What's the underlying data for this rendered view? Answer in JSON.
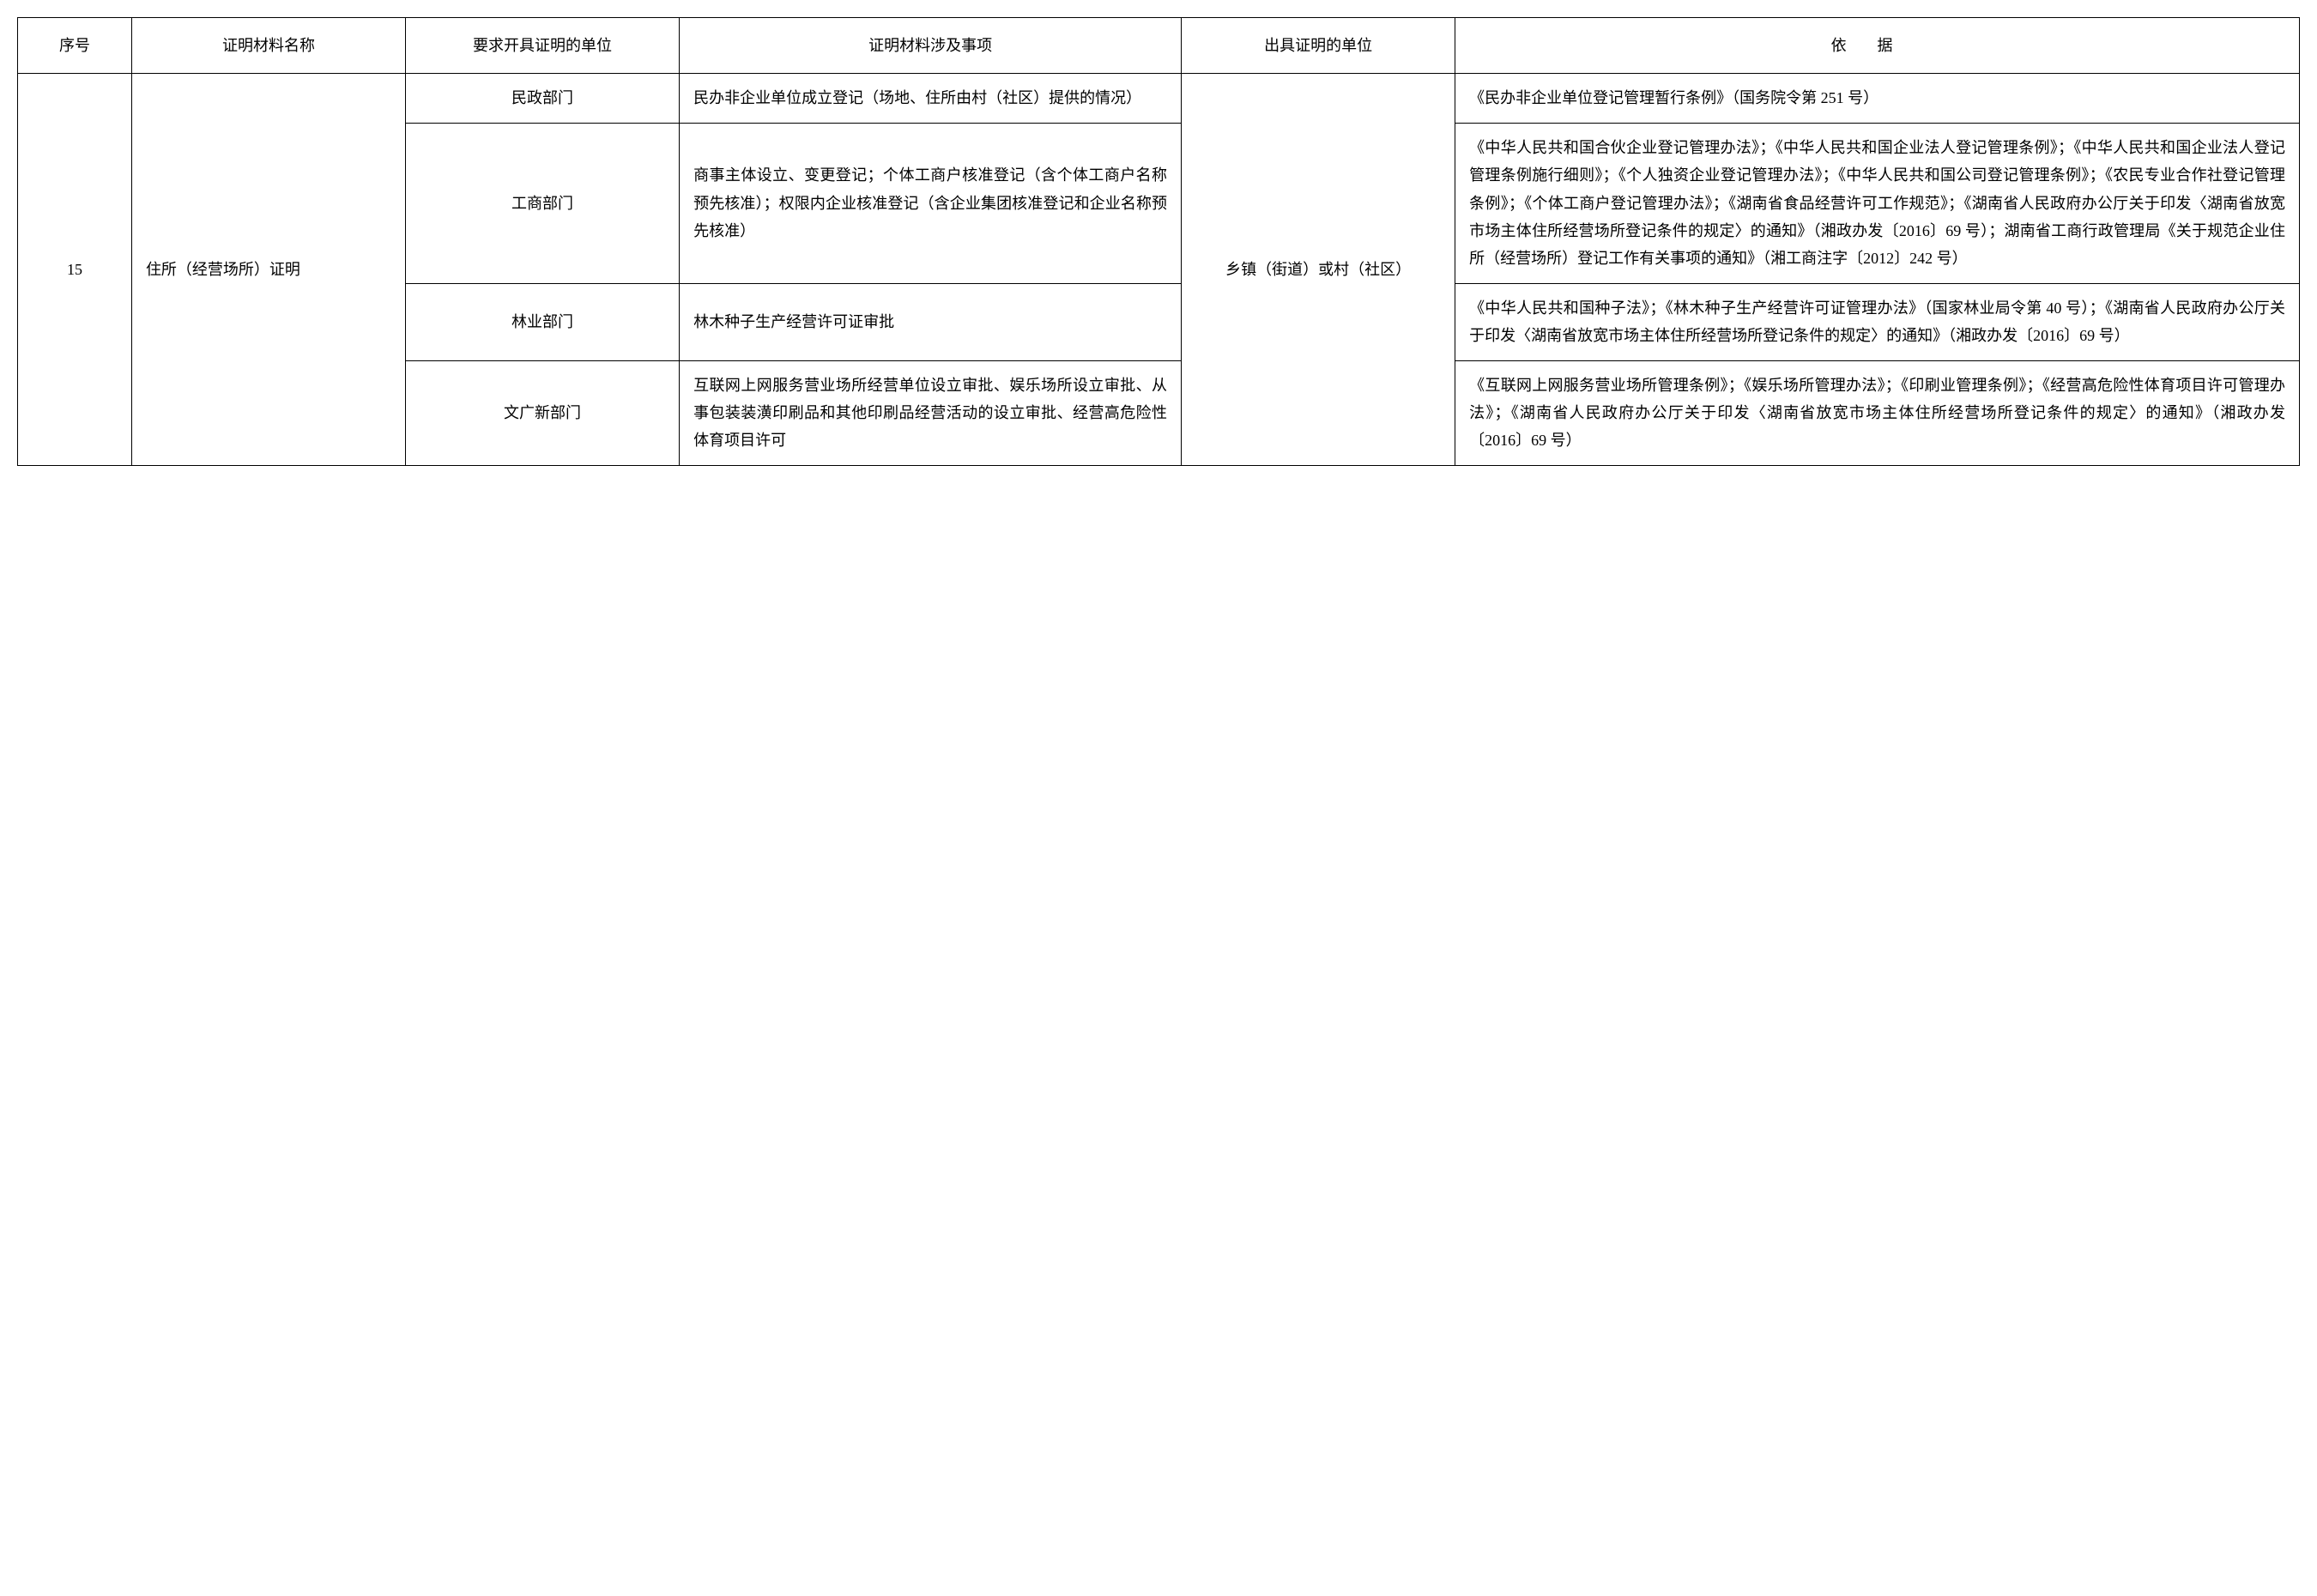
{
  "headers": {
    "seq": "序号",
    "name": "证明材料名称",
    "requester": "要求开具证明的单位",
    "matter": "证明材料涉及事项",
    "issuer": "出具证明的单位",
    "basis": "依据"
  },
  "row": {
    "seq": "15",
    "name": "住所（经营场所）证明",
    "issuer": "乡镇（街道）或村（社区）",
    "items": [
      {
        "requester": "民政部门",
        "matter": "民办非企业单位成立登记（场地、住所由村（社区）提供的情况）",
        "basis": "《民办非企业单位登记管理暂行条例》（国务院令第 251 号）"
      },
      {
        "requester": "工商部门",
        "matter": "商事主体设立、变更登记；个体工商户核准登记（含个体工商户名称预先核准）；权限内企业核准登记（含企业集团核准登记和企业名称预先核准）",
        "basis": "《中华人民共和国合伙企业登记管理办法》；《中华人民共和国企业法人登记管理条例》；《中华人民共和国企业法人登记管理条例施行细则》；《个人独资企业登记管理办法》；《中华人民共和国公司登记管理条例》；《农民专业合作社登记管理条例》；《个体工商户登记管理办法》；《湖南省食品经营许可工作规范》；《湖南省人民政府办公厅关于印发〈湖南省放宽市场主体住所经营场所登记条件的规定〉的通知》（湘政办发〔2016〕69 号）；湖南省工商行政管理局《关于规范企业住所（经营场所）登记工作有关事项的通知》（湘工商注字〔2012〕242 号）"
      },
      {
        "requester": "林业部门",
        "matter": "林木种子生产经营许可证审批",
        "basis": "《中华人民共和国种子法》；《林木种子生产经营许可证管理办法》（国家林业局令第 40 号）；《湖南省人民政府办公厅关于印发〈湖南省放宽市场主体住所经营场所登记条件的规定〉的通知》（湘政办发〔2016〕69 号）"
      },
      {
        "requester": "文广新部门",
        "matter": "互联网上网服务营业场所经营单位设立审批、娱乐场所设立审批、从事包装装潢印刷品和其他印刷品经营活动的设立审批、经营高危险性体育项目许可",
        "basis": "《互联网上网服务营业场所管理条例》；《娱乐场所管理办法》；《印刷业管理条例》；《经营高危险性体育项目许可管理办法》；《湖南省人民政府办公厅关于印发〈湖南省放宽市场主体住所经营场所登记条件的规定〉的通知》（湘政办发〔2016〕69 号）"
      }
    ]
  }
}
